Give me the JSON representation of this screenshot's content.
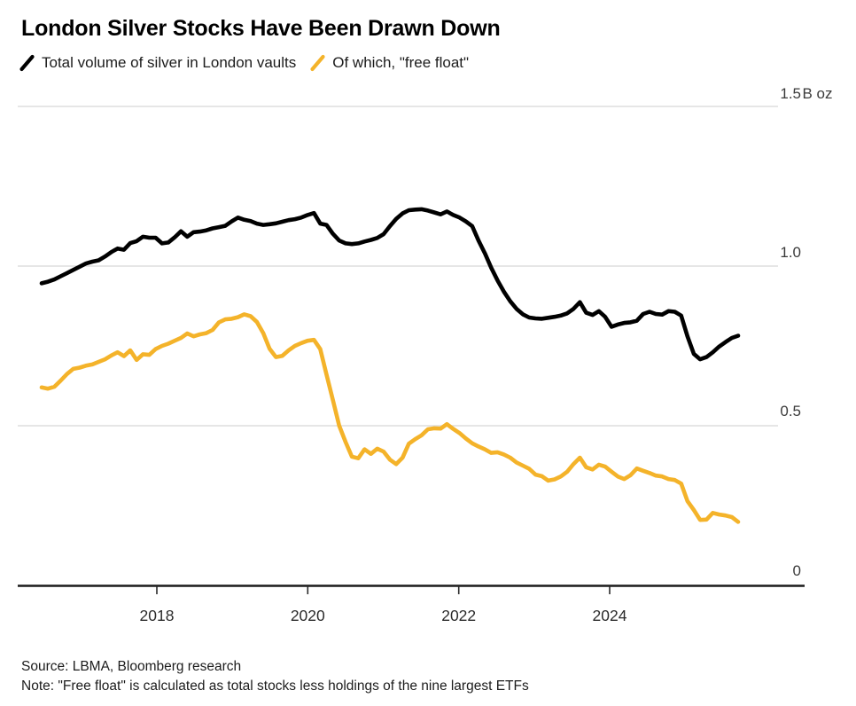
{
  "title": "London Silver Stocks Have Been Drawn Down",
  "legend": {
    "items": [
      {
        "label": "Total volume of silver in London vaults",
        "color": "#000000"
      },
      {
        "label": "Of which, \"free float\"",
        "color": "#F4B32A"
      }
    ]
  },
  "y_axis": {
    "unit_suffix": "B oz",
    "tick_labels": [
      "1.5",
      "1.0",
      "0.5",
      "0"
    ],
    "tick_values": [
      1.5,
      1.0,
      0.5,
      0
    ]
  },
  "x_axis": {
    "tick_labels": [
      "2018",
      "2020",
      "2022",
      "2024"
    ],
    "tick_values": [
      2018,
      2020,
      2022,
      2024
    ]
  },
  "footer": {
    "source": "Source: LBMA, Bloomberg research",
    "note": "Note: \"Free float\" is calculated as total stocks less holdings of the nine largest ETFs"
  },
  "colors": {
    "total_line": "#000000",
    "free_float_line": "#F4B32A",
    "grid": "#d8d8d8",
    "axis": "#1a1a1a",
    "background": "#ffffff"
  },
  "chart_data": {
    "type": "line",
    "title": "London Silver Stocks Have Been Drawn Down",
    "unit": "B oz",
    "frequency": "monthly",
    "x_start": "2016-07",
    "x_end": "2025-09",
    "ylim": [
      0,
      1.5
    ],
    "gridlines": [
      0.5,
      1.0,
      1.5
    ],
    "grid_on": true,
    "legend_position": "top-left",
    "x_ticks": [
      2018,
      2020,
      2022,
      2024
    ],
    "series": [
      {
        "name": "Total volume of silver in London vaults",
        "color": "#000000",
        "values": [
          0.946,
          0.951,
          0.958,
          0.968,
          0.978,
          0.988,
          0.998,
          1.008,
          1.014,
          1.018,
          1.03,
          1.044,
          1.055,
          1.051,
          1.072,
          1.078,
          1.092,
          1.089,
          1.089,
          1.071,
          1.074,
          1.09,
          1.109,
          1.092,
          1.106,
          1.108,
          1.112,
          1.118,
          1.122,
          1.126,
          1.14,
          1.152,
          1.145,
          1.141,
          1.133,
          1.129,
          1.131,
          1.134,
          1.139,
          1.144,
          1.147,
          1.152,
          1.16,
          1.166,
          1.133,
          1.129,
          1.101,
          1.08,
          1.071,
          1.069,
          1.071,
          1.077,
          1.082,
          1.088,
          1.1,
          1.125,
          1.148,
          1.165,
          1.175,
          1.177,
          1.178,
          1.174,
          1.168,
          1.162,
          1.171,
          1.16,
          1.152,
          1.14,
          1.125,
          1.08,
          1.04,
          0.995,
          0.955,
          0.92,
          0.89,
          0.866,
          0.849,
          0.839,
          0.836,
          0.835,
          0.838,
          0.841,
          0.845,
          0.852,
          0.866,
          0.887,
          0.854,
          0.847,
          0.859,
          0.841,
          0.81,
          0.817,
          0.822,
          0.824,
          0.829,
          0.85,
          0.857,
          0.85,
          0.848,
          0.859,
          0.857,
          0.845,
          0.78,
          0.725,
          0.708,
          0.715,
          0.73,
          0.748,
          0.762,
          0.775,
          0.782
        ]
      },
      {
        "name": "Of which, \"free float\"",
        "color": "#F4B32A",
        "values": [
          0.62,
          0.616,
          0.622,
          0.641,
          0.662,
          0.678,
          0.682,
          0.688,
          0.692,
          0.7,
          0.708,
          0.72,
          0.73,
          0.718,
          0.736,
          0.706,
          0.724,
          0.722,
          0.74,
          0.75,
          0.757,
          0.766,
          0.775,
          0.789,
          0.78,
          0.786,
          0.79,
          0.8,
          0.824,
          0.833,
          0.835,
          0.84,
          0.849,
          0.843,
          0.825,
          0.79,
          0.741,
          0.715,
          0.719,
          0.736,
          0.75,
          0.759,
          0.766,
          0.769,
          0.74,
          0.66,
          0.58,
          0.5,
          0.449,
          0.403,
          0.398,
          0.426,
          0.412,
          0.428,
          0.419,
          0.394,
          0.38,
          0.4,
          0.444,
          0.458,
          0.47,
          0.489,
          0.492,
          0.491,
          0.505,
          0.49,
          0.477,
          0.46,
          0.445,
          0.435,
          0.426,
          0.415,
          0.417,
          0.41,
          0.4,
          0.385,
          0.375,
          0.365,
          0.347,
          0.342,
          0.328,
          0.332,
          0.341,
          0.356,
          0.38,
          0.4,
          0.37,
          0.363,
          0.378,
          0.372,
          0.356,
          0.341,
          0.333,
          0.345,
          0.366,
          0.359,
          0.352,
          0.344,
          0.341,
          0.333,
          0.33,
          0.319,
          0.264,
          0.236,
          0.205,
          0.206,
          0.227,
          0.222,
          0.219,
          0.214,
          0.199
        ]
      }
    ]
  }
}
